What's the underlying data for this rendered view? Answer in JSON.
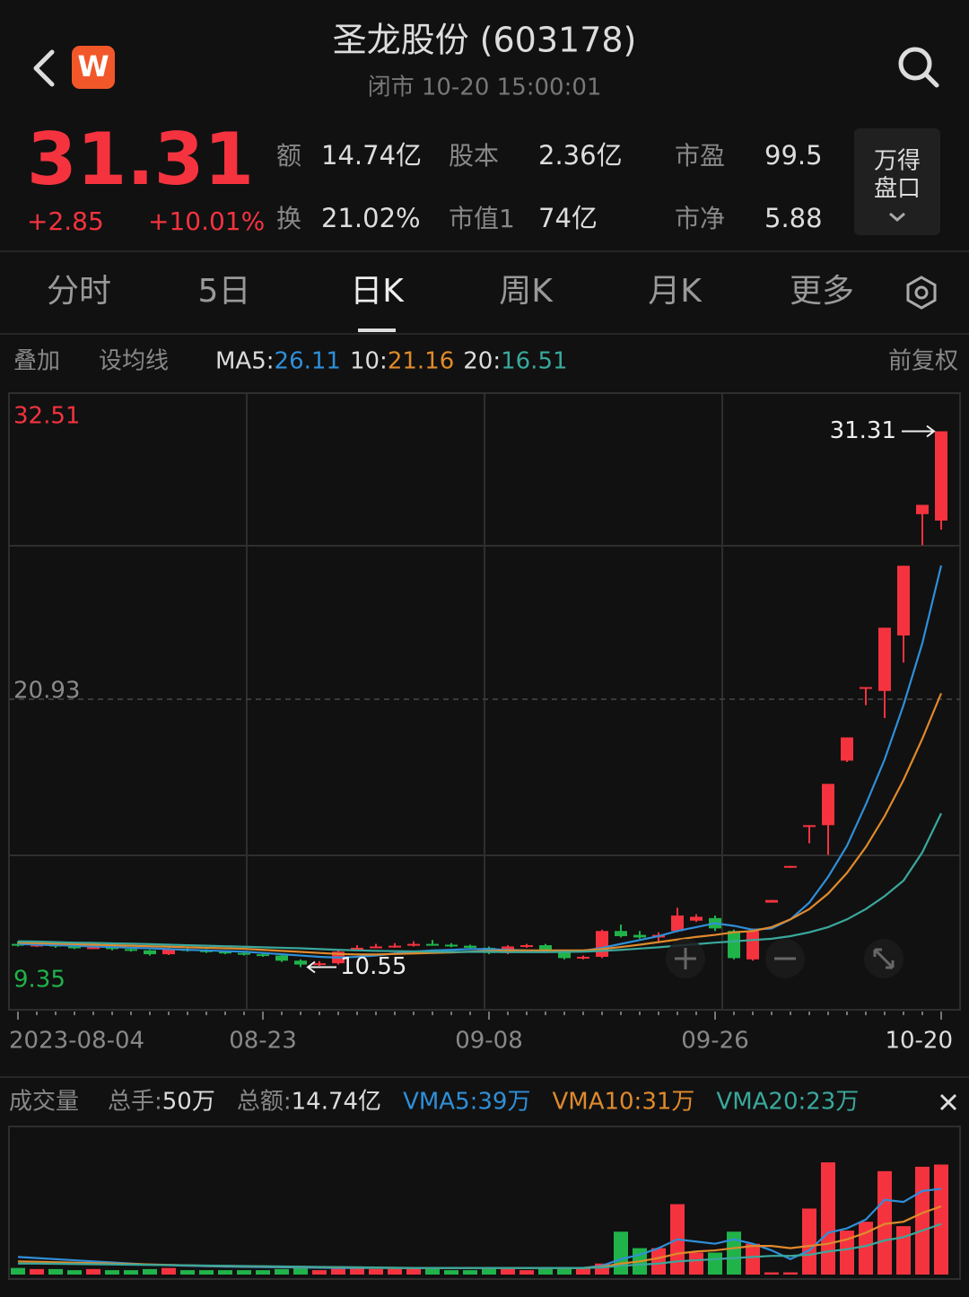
{
  "header": {
    "logo": "W",
    "title": "圣龙股份 (603178)",
    "status": "闭市 10-20 15:00:01"
  },
  "quote": {
    "price": "31.31",
    "change": "+2.85",
    "change_pct": "+10.01%",
    "stats": [
      {
        "label": "额",
        "value": "14.74亿"
      },
      {
        "label": "股本",
        "value": "2.36亿"
      },
      {
        "label": "市盈",
        "value": "99.5"
      },
      {
        "label": "换",
        "value": "21.02%"
      },
      {
        "label": "市值1",
        "value": "74亿"
      },
      {
        "label": "市净",
        "value": "5.88"
      }
    ],
    "panel": [
      "万得",
      "盘口"
    ]
  },
  "tabs": {
    "items": [
      "分时",
      "5日",
      "日K",
      "周K",
      "月K",
      "更多"
    ],
    "active": 2
  },
  "toolbar": {
    "overlay": "叠加",
    "set_ma": "设均线",
    "adjust": "前复权"
  },
  "chart_data": [
    {
      "type": "candlestick",
      "up_color": "#f5333f",
      "down_color": "#20b34a",
      "x": [
        "2023-08-04",
        null,
        null,
        null,
        null,
        null,
        null,
        null,
        null,
        null,
        null,
        null,
        null,
        "08-23",
        null,
        null,
        null,
        null,
        null,
        null,
        null,
        null,
        null,
        null,
        null,
        "09-08",
        null,
        null,
        null,
        null,
        null,
        null,
        null,
        null,
        null,
        null,
        null,
        "09-26",
        null,
        null,
        null,
        null,
        null,
        null,
        null,
        null,
        null,
        null,
        null,
        "10-20"
      ],
      "open": [
        11.45,
        11.4,
        11.42,
        11.35,
        11.3,
        11.32,
        11.25,
        11.2,
        11.05,
        11.25,
        11.2,
        11.15,
        11.1,
        11.05,
        11.0,
        10.8,
        10.65,
        10.7,
        11.25,
        11.3,
        11.35,
        11.38,
        11.45,
        11.42,
        11.38,
        11.3,
        11.1,
        11.35,
        11.4,
        11.15,
        10.9,
        10.95,
        11.95,
        11.8,
        11.7,
        11.95,
        12.35,
        12.45,
        11.95,
        10.85,
        13.05,
        14.4,
        16.0,
        16.05,
        18.55,
        21.35,
        21.25,
        23.4,
        28.1,
        27.85
      ],
      "close": [
        11.4,
        11.42,
        11.35,
        11.3,
        11.32,
        11.25,
        11.2,
        11.05,
        11.25,
        11.2,
        11.15,
        11.1,
        11.05,
        11.0,
        10.8,
        10.65,
        10.7,
        11.15,
        11.3,
        11.35,
        11.38,
        11.45,
        11.42,
        11.38,
        11.3,
        11.1,
        11.35,
        11.4,
        11.2,
        10.9,
        10.95,
        11.95,
        11.75,
        11.7,
        11.8,
        12.55,
        12.5,
        12.05,
        10.9,
        11.95,
        13.15,
        14.47,
        16.05,
        17.65,
        19.45,
        21.4,
        23.7,
        26.1,
        28.46,
        31.31
      ],
      "high": [
        11.55,
        11.48,
        11.45,
        11.38,
        11.4,
        11.35,
        11.3,
        11.22,
        11.3,
        11.3,
        11.25,
        11.2,
        11.15,
        11.1,
        11.02,
        10.85,
        10.78,
        11.2,
        11.4,
        11.45,
        11.48,
        11.55,
        11.6,
        11.48,
        11.42,
        11.35,
        11.4,
        11.45,
        11.45,
        11.2,
        11.0,
        12.0,
        12.2,
        11.95,
        11.9,
        12.85,
        12.6,
        12.55,
        12.0,
        12.05,
        13.15,
        14.47,
        16.05,
        17.65,
        19.45,
        21.4,
        23.7,
        26.1,
        28.46,
        31.31
      ],
      "low": [
        11.35,
        11.33,
        11.3,
        11.25,
        11.26,
        11.2,
        11.15,
        11.0,
        11.02,
        11.15,
        11.1,
        11.05,
        11.0,
        10.95,
        10.75,
        10.55,
        10.6,
        10.65,
        11.2,
        11.28,
        11.3,
        11.35,
        11.38,
        11.32,
        11.25,
        11.05,
        11.05,
        11.3,
        11.15,
        10.85,
        10.85,
        10.9,
        11.7,
        11.65,
        11.55,
        11.9,
        12.3,
        11.95,
        10.85,
        10.8,
        13.05,
        14.4,
        15.35,
        14.9,
        18.5,
        20.7,
        20.2,
        22.35,
        26.9,
        27.5
      ],
      "ylim": [
        9.35,
        32.51
      ],
      "yticks": [
        32.51,
        20.93,
        9.35
      ],
      "ytick_colors": [
        "#f5333f",
        "#8a8a8a",
        "#20b34a"
      ],
      "annotations": {
        "high": 31.31,
        "low": 10.55
      },
      "series": [
        {
          "name": "MA5:",
          "color": "#2f8fd8",
          "values": [
            11.45,
            11.42,
            11.4,
            11.38,
            11.35,
            11.33,
            11.3,
            11.28,
            11.25,
            11.22,
            11.2,
            11.17,
            11.15,
            11.1,
            11.05,
            11.0,
            10.95,
            10.92,
            10.95,
            11.0,
            11.08,
            11.15,
            11.2,
            11.22,
            11.25,
            11.25,
            11.22,
            11.2,
            11.18,
            11.16,
            11.18,
            11.3,
            11.45,
            11.6,
            11.75,
            11.95,
            12.1,
            12.25,
            12.15,
            12.0,
            12.05,
            12.4,
            13.05,
            14.05,
            15.25,
            16.85,
            18.6,
            20.7,
            23.1,
            26.11
          ]
        },
        {
          "name": "10:",
          "color": "#e08a2c",
          "values": [
            11.5,
            11.48,
            11.46,
            11.44,
            11.42,
            11.4,
            11.38,
            11.36,
            11.34,
            11.32,
            11.3,
            11.28,
            11.26,
            11.22,
            11.18,
            11.14,
            11.1,
            11.06,
            11.04,
            11.04,
            11.06,
            11.08,
            11.1,
            11.12,
            11.15,
            11.18,
            11.2,
            11.2,
            11.2,
            11.2,
            11.2,
            11.25,
            11.33,
            11.42,
            11.52,
            11.62,
            11.72,
            11.8,
            11.9,
            11.95,
            12.1,
            12.4,
            12.8,
            13.4,
            14.2,
            15.2,
            16.4,
            17.8,
            19.4,
            21.16
          ]
        },
        {
          "name": "20:",
          "color": "#3aa89c",
          "values": [
            11.55,
            11.54,
            11.52,
            11.5,
            11.49,
            11.47,
            11.46,
            11.44,
            11.42,
            11.4,
            11.38,
            11.36,
            11.34,
            11.32,
            11.3,
            11.28,
            11.25,
            11.22,
            11.2,
            11.18,
            11.17,
            11.16,
            11.15,
            11.14,
            11.14,
            11.14,
            11.13,
            11.13,
            11.13,
            11.14,
            11.15,
            11.18,
            11.22,
            11.27,
            11.32,
            11.38,
            11.44,
            11.5,
            11.55,
            11.6,
            11.65,
            11.75,
            11.9,
            12.1,
            12.4,
            12.8,
            13.3,
            13.9,
            15.0,
            16.51
          ]
        }
      ]
    },
    {
      "type": "bar",
      "title": "成交量",
      "stats": [
        {
          "label": "总手:",
          "value": "50万"
        },
        {
          "label": "总额:",
          "value": "14.74亿"
        }
      ],
      "values": [
        3,
        2.5,
        2.5,
        2,
        2.5,
        2,
        2,
        2.5,
        3,
        2,
        2,
        2,
        2,
        2,
        2.5,
        3,
        2,
        3.5,
        3,
        2.5,
        2.5,
        3,
        2.5,
        2,
        2,
        2.5,
        2.5,
        2,
        2.5,
        2.5,
        3,
        5,
        19.5,
        12,
        12,
        32,
        10,
        10,
        19.5,
        14,
        1,
        1,
        30,
        51,
        20,
        24,
        47,
        22,
        49,
        50
      ],
      "ylim": [
        0,
        51
      ],
      "series": [
        {
          "name": "VMA5:39万",
          "color": "#2f8fd8",
          "values": [
            8,
            7.5,
            7,
            6.5,
            6,
            5.5,
            5,
            4.5,
            4.2,
            4,
            3.8,
            3.6,
            3.5,
            3.4,
            3.3,
            3.2,
            3.1,
            3.0,
            3.0,
            3.0,
            3,
            3,
            3,
            3,
            3,
            3,
            3,
            3,
            3,
            3,
            3,
            4,
            7,
            9,
            12,
            16,
            15,
            14,
            16,
            14,
            11,
            7,
            11,
            19,
            21,
            25,
            34,
            33,
            38,
            39
          ]
        },
        {
          "name": "VMA10:31万",
          "color": "#e08a2c",
          "values": [
            6,
            5.8,
            5.6,
            5.4,
            5.2,
            5,
            4.8,
            4.6,
            4.4,
            4.2,
            4,
            3.9,
            3.8,
            3.7,
            3.6,
            3.5,
            3.4,
            3.3,
            3.2,
            3.1,
            3,
            3,
            3,
            3,
            3,
            3,
            3,
            3,
            3,
            3,
            3,
            3.5,
            5,
            6,
            7.5,
            9.5,
            10.5,
            11,
            12,
            13,
            13,
            12,
            13,
            14,
            16,
            19,
            23,
            24,
            28,
            31
          ]
        },
        {
          "name": "VMA20:23万",
          "color": "#3aa89c",
          "values": [
            5,
            5,
            4.9,
            4.8,
            4.7,
            4.6,
            4.5,
            4.4,
            4.3,
            4.2,
            4.1,
            4,
            3.9,
            3.8,
            3.7,
            3.6,
            3.5,
            3.4,
            3.3,
            3.2,
            3.1,
            3,
            3,
            3,
            3,
            3,
            3,
            3,
            3,
            3,
            3,
            3.2,
            4,
            4.5,
            5,
            6,
            6.5,
            7,
            7.5,
            8,
            8.5,
            8.5,
            9,
            10.5,
            11.5,
            13,
            15.5,
            17,
            20,
            23
          ]
        }
      ]
    }
  ]
}
